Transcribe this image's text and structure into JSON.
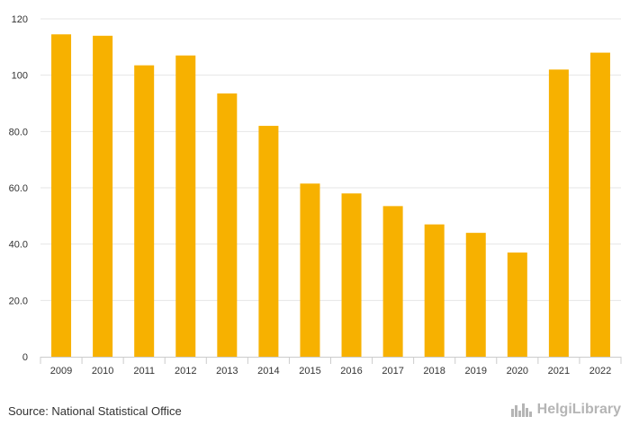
{
  "chart_data": {
    "type": "bar",
    "categories": [
      "2009",
      "2010",
      "2011",
      "2012",
      "2013",
      "2014",
      "2015",
      "2016",
      "2017",
      "2018",
      "2019",
      "2020",
      "2021",
      "2022"
    ],
    "values": [
      114.5,
      114.0,
      103.5,
      107.0,
      93.5,
      82.0,
      61.5,
      58.0,
      53.5,
      47.0,
      44.0,
      37.0,
      102.0,
      108.0
    ],
    "ylim": [
      0,
      120
    ],
    "yticks": [
      0,
      20,
      40,
      60,
      80,
      100,
      120
    ],
    "ytick_labels": [
      "0",
      "20.0",
      "40.0",
      "60.0",
      "80.0",
      "100",
      "120"
    ],
    "title": "",
    "xlabel": "",
    "ylabel": "",
    "grid": true,
    "bar_color": "#f7b100"
  },
  "footer": {
    "source": "Source: National Statistical Office",
    "brand": "HelgiLibrary"
  },
  "colors": {
    "grid": "#e6e6e6",
    "axis": "#cccccc",
    "text": "#333333",
    "brand": "#b5b5b5"
  },
  "brand_icon": "city-skyline-icon"
}
